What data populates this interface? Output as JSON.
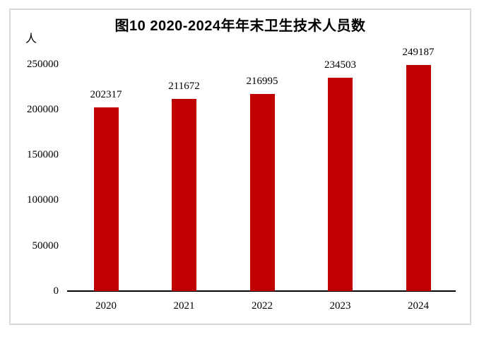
{
  "chart_data": {
    "type": "bar",
    "title": "图10  2020-2024年年末卫生技术人员数",
    "y_unit_label": "人",
    "categories": [
      "2020",
      "2021",
      "2022",
      "2023",
      "2024"
    ],
    "values": [
      202317,
      211672,
      216995,
      234503,
      249187
    ],
    "data_labels": [
      "202317",
      "211672",
      "216995",
      "234503",
      "249187"
    ],
    "y_ticks": [
      0,
      50000,
      100000,
      150000,
      200000,
      250000
    ],
    "ylim": [
      0,
      260000
    ],
    "xlabel": "",
    "ylabel": "人",
    "grid": false,
    "legend": "none",
    "bar_color": "#C00000"
  },
  "colors": {
    "bar": "#C00000",
    "axis": "#000000",
    "frame_border": "#D9D9D9",
    "background": "#FFFFFF",
    "text": "#000000"
  }
}
